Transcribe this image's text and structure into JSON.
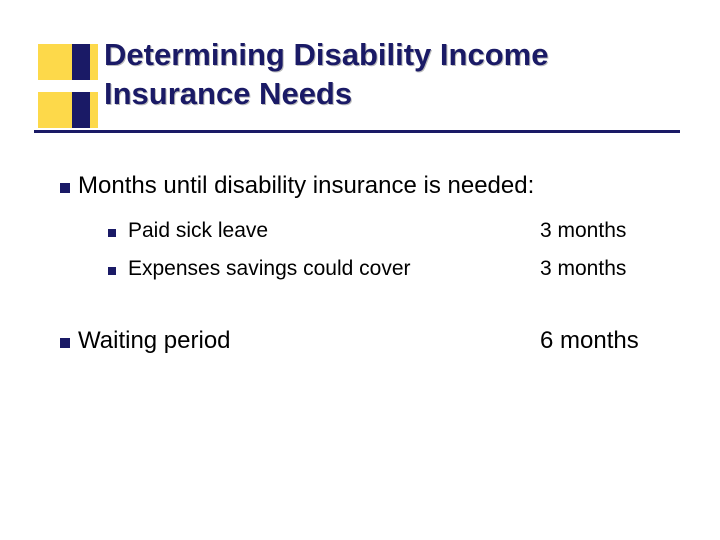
{
  "title": "Determining Disability Income Insurance Needs",
  "colors": {
    "navy": "#1a1a66",
    "yellow": "#fdd94a",
    "text": "#000000",
    "background": "#ffffff",
    "shadow": "#bbbbbb"
  },
  "typography": {
    "title_fontsize": 31,
    "title_fontweight": "bold",
    "main_bullet_fontsize": 24,
    "sub_bullet_fontsize": 21,
    "font_family": "Verdana"
  },
  "main": {
    "heading": "Months until disability insurance is needed:",
    "items": [
      {
        "label": "Paid sick leave",
        "value": "3 months"
      },
      {
        "label": "Expenses savings could cover",
        "value": "3 months"
      }
    ]
  },
  "waiting": {
    "label": "Waiting period",
    "value": "6 months"
  }
}
